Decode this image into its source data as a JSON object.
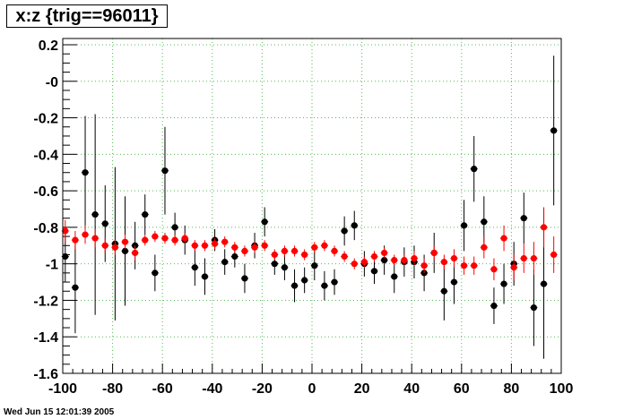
{
  "title": "x:z {trig==96011}",
  "footer_date": "Wed Jun 15 12:01:39 2005",
  "chart_data": {
    "type": "scatter",
    "title": "x:z {trig==96011}",
    "xlabel": "",
    "ylabel": "",
    "xlim": [
      -100,
      100
    ],
    "ylim": [
      -1.6,
      0.25
    ],
    "grid": true,
    "x_ticks": [
      -100,
      -80,
      -60,
      -40,
      -20,
      0,
      20,
      40,
      60,
      80,
      100
    ],
    "x_tick_labels": [
      "-100",
      "-80",
      "-60",
      "-40",
      "-20",
      "0",
      "20",
      "40",
      "60",
      "80",
      "100"
    ],
    "y_ticks": [
      0.2,
      0,
      -0.2,
      -0.4,
      -0.6,
      -0.8,
      -1,
      -1.2,
      -1.4,
      -1.6
    ],
    "y_tick_labels": [
      "0.2",
      "-0",
      "-0.2",
      "-0.4",
      "-0.6",
      "-0.8",
      "-1",
      "-1.2",
      "-1.4",
      "-1.6"
    ],
    "series": [
      {
        "color": "#000000",
        "points": [
          {
            "x": -99,
            "y": -0.96,
            "err": 0.14
          },
          {
            "x": -95,
            "y": -1.13,
            "err": 0.25
          },
          {
            "x": -91,
            "y": -0.5,
            "err": 0.31
          },
          {
            "x": -87,
            "y": -0.73,
            "err": 0.55
          },
          {
            "x": -83,
            "y": -0.78,
            "err": 0.21
          },
          {
            "x": -79,
            "y": -0.89,
            "err": 0.42
          },
          {
            "x": -75,
            "y": -0.93,
            "err": 0.3
          },
          {
            "x": -71,
            "y": -0.9,
            "err": 0.13
          },
          {
            "x": -67,
            "y": -0.73,
            "err": 0.11
          },
          {
            "x": -63,
            "y": -1.05,
            "err": 0.1
          },
          {
            "x": -59,
            "y": -0.49,
            "err": 0.24
          },
          {
            "x": -55,
            "y": -0.8,
            "err": 0.08
          },
          {
            "x": -51,
            "y": -0.87,
            "err": 0.08
          },
          {
            "x": -47,
            "y": -1.02,
            "err": 0.1
          },
          {
            "x": -43,
            "y": -1.07,
            "err": 0.1
          },
          {
            "x": -39,
            "y": -0.87,
            "err": 0.06
          },
          {
            "x": -35,
            "y": -0.99,
            "err": 0.07
          },
          {
            "x": -31,
            "y": -0.96,
            "err": 0.06
          },
          {
            "x": -27,
            "y": -1.08,
            "err": 0.08
          },
          {
            "x": -23,
            "y": -0.9,
            "err": 0.07
          },
          {
            "x": -19,
            "y": -0.77,
            "err": 0.08
          },
          {
            "x": -15,
            "y": -1.0,
            "err": 0.06
          },
          {
            "x": -11,
            "y": -1.02,
            "err": 0.07
          },
          {
            "x": -7,
            "y": -1.12,
            "err": 0.09
          },
          {
            "x": -3,
            "y": -1.09,
            "err": 0.07
          },
          {
            "x": 1,
            "y": -1.01,
            "err": 0.08
          },
          {
            "x": 5,
            "y": -1.12,
            "err": 0.08
          },
          {
            "x": 9,
            "y": -1.1,
            "err": 0.07
          },
          {
            "x": 13,
            "y": -0.82,
            "err": 0.08
          },
          {
            "x": 17,
            "y": -0.79,
            "err": 0.08
          },
          {
            "x": 21,
            "y": -1.0,
            "err": 0.07
          },
          {
            "x": 25,
            "y": -1.04,
            "err": 0.07
          },
          {
            "x": 29,
            "y": -0.98,
            "err": 0.08
          },
          {
            "x": 33,
            "y": -1.07,
            "err": 0.09
          },
          {
            "x": 37,
            "y": -0.99,
            "err": 0.08
          },
          {
            "x": 41,
            "y": -0.99,
            "err": 0.09
          },
          {
            "x": 45,
            "y": -1.05,
            "err": 0.1
          },
          {
            "x": 49,
            "y": -0.94,
            "err": 0.11
          },
          {
            "x": 53,
            "y": -1.15,
            "err": 0.16
          },
          {
            "x": 57,
            "y": -1.1,
            "err": 0.12
          },
          {
            "x": 61,
            "y": -0.79,
            "err": 0.14
          },
          {
            "x": 65,
            "y": -0.48,
            "err": 0.18
          },
          {
            "x": 69,
            "y": -0.77,
            "err": 0.14
          },
          {
            "x": 73,
            "y": -1.23,
            "err": 0.1
          },
          {
            "x": 77,
            "y": -1.11,
            "err": 0.11
          },
          {
            "x": 81,
            "y": -1.0,
            "err": 0.12
          },
          {
            "x": 85,
            "y": -0.75,
            "err": 0.14
          },
          {
            "x": 89,
            "y": -1.24,
            "err": 0.21
          },
          {
            "x": 93,
            "y": -1.11,
            "err": 0.41
          },
          {
            "x": 97,
            "y": -0.27,
            "err": 0.41
          }
        ]
      },
      {
        "color": "#ff0000",
        "points": [
          {
            "x": -99,
            "y": -0.82,
            "err": 0.06
          },
          {
            "x": -95,
            "y": -0.87,
            "err": 0.05
          },
          {
            "x": -91,
            "y": -0.84,
            "err": 0.05
          },
          {
            "x": -87,
            "y": -0.86,
            "err": 0.05
          },
          {
            "x": -83,
            "y": -0.9,
            "err": 0.04
          },
          {
            "x": -79,
            "y": -0.91,
            "err": 0.04
          },
          {
            "x": -75,
            "y": -0.88,
            "err": 0.04
          },
          {
            "x": -71,
            "y": -0.94,
            "err": 0.04
          },
          {
            "x": -67,
            "y": -0.87,
            "err": 0.03
          },
          {
            "x": -63,
            "y": -0.85,
            "err": 0.03
          },
          {
            "x": -59,
            "y": -0.86,
            "err": 0.03
          },
          {
            "x": -55,
            "y": -0.87,
            "err": 0.03
          },
          {
            "x": -51,
            "y": -0.86,
            "err": 0.03
          },
          {
            "x": -47,
            "y": -0.9,
            "err": 0.03
          },
          {
            "x": -43,
            "y": -0.9,
            "err": 0.03
          },
          {
            "x": -39,
            "y": -0.89,
            "err": 0.03
          },
          {
            "x": -35,
            "y": -0.88,
            "err": 0.03
          },
          {
            "x": -31,
            "y": -0.91,
            "err": 0.03
          },
          {
            "x": -27,
            "y": -0.93,
            "err": 0.03
          },
          {
            "x": -23,
            "y": -0.91,
            "err": 0.03
          },
          {
            "x": -19,
            "y": -0.9,
            "err": 0.03
          },
          {
            "x": -15,
            "y": -0.95,
            "err": 0.03
          },
          {
            "x": -11,
            "y": -0.93,
            "err": 0.03
          },
          {
            "x": -7,
            "y": -0.93,
            "err": 0.03
          },
          {
            "x": -3,
            "y": -0.95,
            "err": 0.03
          },
          {
            "x": 1,
            "y": -0.91,
            "err": 0.03
          },
          {
            "x": 5,
            "y": -0.9,
            "err": 0.03
          },
          {
            "x": 9,
            "y": -0.93,
            "err": 0.03
          },
          {
            "x": 13,
            "y": -0.96,
            "err": 0.03
          },
          {
            "x": 17,
            "y": -1.0,
            "err": 0.03
          },
          {
            "x": 21,
            "y": -0.99,
            "err": 0.03
          },
          {
            "x": 25,
            "y": -0.96,
            "err": 0.03
          },
          {
            "x": 29,
            "y": -0.94,
            "err": 0.03
          },
          {
            "x": 33,
            "y": -0.98,
            "err": 0.03
          },
          {
            "x": 37,
            "y": -0.98,
            "err": 0.03
          },
          {
            "x": 41,
            "y": -0.97,
            "err": 0.04
          },
          {
            "x": 45,
            "y": -1.01,
            "err": 0.04
          },
          {
            "x": 49,
            "y": -0.94,
            "err": 0.04
          },
          {
            "x": 53,
            "y": -0.99,
            "err": 0.04
          },
          {
            "x": 57,
            "y": -0.97,
            "err": 0.05
          },
          {
            "x": 61,
            "y": -1.01,
            "err": 0.05
          },
          {
            "x": 65,
            "y": -1.01,
            "err": 0.05
          },
          {
            "x": 69,
            "y": -0.91,
            "err": 0.06
          },
          {
            "x": 73,
            "y": -1.03,
            "err": 0.06
          },
          {
            "x": 77,
            "y": -0.86,
            "err": 0.07
          },
          {
            "x": 81,
            "y": -1.02,
            "err": 0.07
          },
          {
            "x": 85,
            "y": -0.97,
            "err": 0.08
          },
          {
            "x": 89,
            "y": -0.97,
            "err": 0.09
          },
          {
            "x": 93,
            "y": -0.8,
            "err": 0.11
          },
          {
            "x": 97,
            "y": -0.95,
            "err": 0.1
          }
        ]
      }
    ]
  }
}
